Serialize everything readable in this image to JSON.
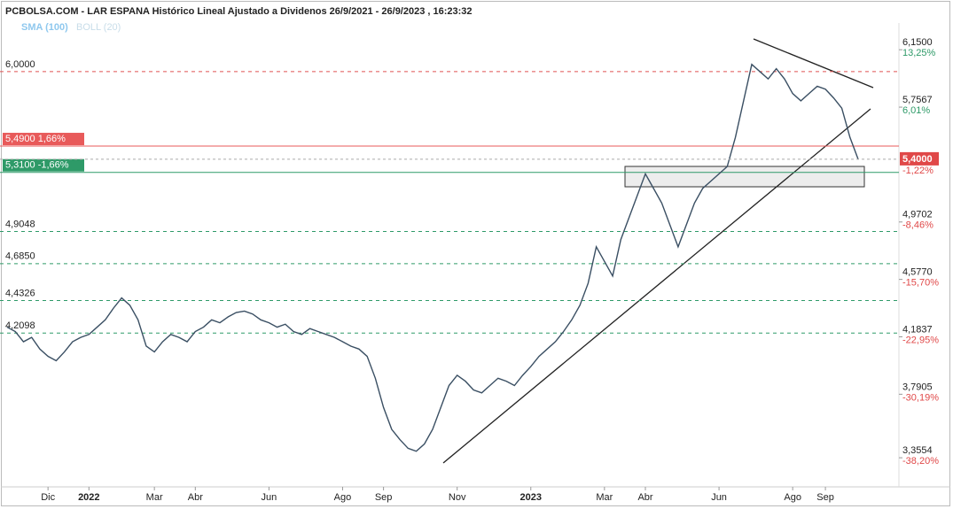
{
  "chart_data": {
    "type": "line",
    "title": "PCBOLSA.COM - LAR ESPANA Histórico Lineal Ajustado a Dividenos 26/9/2021 - 26/9/2023 , 16:23:32",
    "legend": [
      "SMA (100)",
      "BOLL (20)"
    ],
    "series": [
      {
        "name": "LAR ESPANA",
        "color": "#3a4f63",
        "values": [
          4.25,
          4.22,
          4.15,
          4.18,
          4.1,
          4.05,
          4.02,
          4.08,
          4.15,
          4.18,
          4.2,
          4.25,
          4.3,
          4.38,
          4.45,
          4.4,
          4.3,
          4.12,
          4.08,
          4.15,
          4.2,
          4.18,
          4.15,
          4.22,
          4.25,
          4.3,
          4.28,
          4.32,
          4.35,
          4.36,
          4.34,
          4.3,
          4.28,
          4.25,
          4.27,
          4.22,
          4.2,
          4.24,
          4.22,
          4.2,
          4.18,
          4.15,
          4.12,
          4.1,
          4.05,
          3.9,
          3.7,
          3.55,
          3.48,
          3.42,
          3.4,
          3.45,
          3.55,
          3.7,
          3.85,
          3.92,
          3.88,
          3.82,
          3.8,
          3.85,
          3.9,
          3.88,
          3.85,
          3.92,
          3.98,
          4.05,
          4.1,
          4.15,
          4.22,
          4.3,
          4.4,
          4.55,
          4.8,
          4.7,
          4.6,
          4.85,
          5.0,
          5.15,
          5.3,
          5.2,
          5.1,
          4.95,
          4.8,
          4.95,
          5.1,
          5.2,
          5.25,
          5.3,
          5.35,
          5.55,
          5.8,
          6.05,
          6.0,
          5.95,
          6.02,
          5.95,
          5.85,
          5.8,
          5.85,
          5.9,
          5.88,
          5.82,
          5.75,
          5.55,
          5.4
        ]
      }
    ],
    "xlim": [
      0,
      104
    ],
    "xticks": [
      {
        "value": 5,
        "label": "Dic"
      },
      {
        "value": 10,
        "label": "2022"
      },
      {
        "value": 18,
        "label": "Mar"
      },
      {
        "value": 23,
        "label": "Abr"
      },
      {
        "value": 32,
        "label": "Jun"
      },
      {
        "value": 41,
        "label": "Ago"
      },
      {
        "value": 46,
        "label": "Sep"
      },
      {
        "value": 55,
        "label": "Nov"
      },
      {
        "value": 64,
        "label": "2023"
      },
      {
        "value": 73,
        "label": "Mar"
      },
      {
        "value": 78,
        "label": "Abr"
      },
      {
        "value": 87,
        "label": "Jun"
      },
      {
        "value": 96,
        "label": "Ago"
      },
      {
        "value": 100,
        "label": "Sep"
      }
    ],
    "ylim": [
      3.156,
      6.43
    ],
    "yticks": [
      {
        "value": 6.15,
        "label": "6,1500"
      },
      {
        "value": 5.7567,
        "label": "5,7567"
      },
      {
        "value": 4.9702,
        "label": "4,9702"
      },
      {
        "value": 4.577,
        "label": "4,5770"
      },
      {
        "value": 4.1837,
        "label": "4,1837"
      },
      {
        "value": 3.7905,
        "label": "3,7905"
      },
      {
        "value": 3.3554,
        "label": "3,3554"
      }
    ],
    "ytick_changes": [
      {
        "value": 13.25,
        "label": "13,25%"
      },
      {
        "value": 6.01,
        "label": "6,01%"
      },
      {
        "value": -8.46,
        "label": "-8,46%"
      },
      {
        "value": -15.7,
        "label": "-15,70%"
      },
      {
        "value": -22.95,
        "label": "-22,95%"
      },
      {
        "value": -30.19,
        "label": "-30,19%"
      },
      {
        "value": -38.2,
        "label": "-38,20%"
      }
    ],
    "last_price": {
      "value": 5.4,
      "label": "5,4000"
    },
    "last_change": {
      "value": -1.22,
      "label": "-1,22%"
    },
    "levels": [
      {
        "value": 6.0,
        "label": "6,0000",
        "color": "#e05050",
        "style": "dashed",
        "boxed": false
      },
      {
        "value": 5.49,
        "label": "5,4900  1,66%",
        "color": "#e85a5a",
        "style": "solid",
        "boxed": true
      },
      {
        "value": 5.31,
        "label": "5,3100  -1,66%",
        "color": "#2e9a68",
        "style": "solid",
        "boxed": true
      },
      {
        "value": 4.9048,
        "label": "4,9048",
        "color": "#2e9a68",
        "style": "dashed",
        "boxed": false
      },
      {
        "value": 4.685,
        "label": "4,6850",
        "color": "#2e9a68",
        "style": "dashed",
        "boxed": false
      },
      {
        "value": 4.4326,
        "label": "4,4326",
        "color": "#2e9a68",
        "style": "dashed",
        "boxed": false
      },
      {
        "value": 4.2098,
        "label": "4,2098",
        "color": "#2e9a68",
        "style": "dashed",
        "boxed": false
      }
    ]
  }
}
